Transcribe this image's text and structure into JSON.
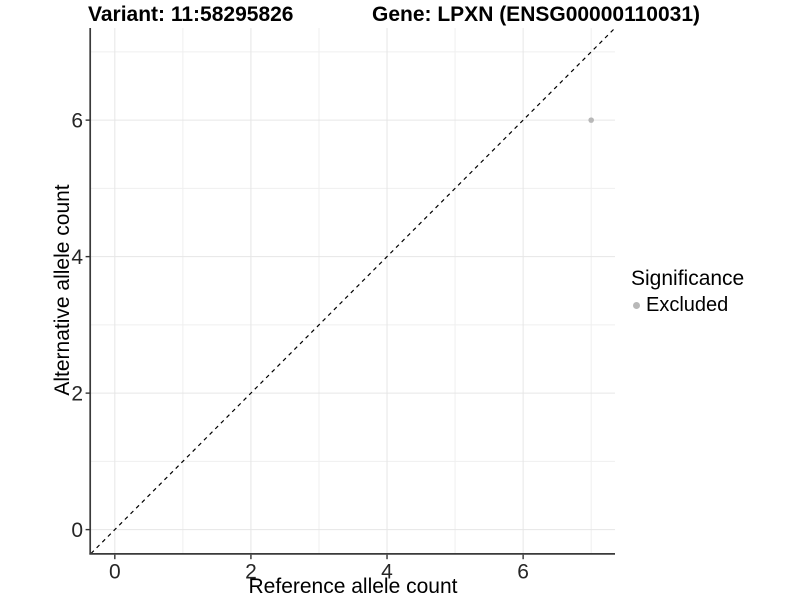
{
  "titles": {
    "left": "Variant: 11:58295826",
    "right": "Gene: LPXN (ENSG00000110031)"
  },
  "chart_data": {
    "type": "scatter",
    "xlabel": "Reference allele count",
    "ylabel": "Alternative allele count",
    "xlim": [
      -0.35,
      7.35
    ],
    "ylim": [
      -0.35,
      7.35
    ],
    "xticks": [
      0,
      2,
      4,
      6
    ],
    "yticks": [
      0,
      2,
      4,
      6
    ],
    "xticks_minor": [
      1,
      3,
      5,
      7
    ],
    "yticks_minor": [
      1,
      3,
      5,
      7
    ],
    "grid": "major+minor",
    "reference_line": {
      "type": "identity",
      "from": [
        -0.35,
        -0.35
      ],
      "to": [
        7.35,
        7.35
      ],
      "style": "dashed",
      "color": "#000000"
    },
    "series": [
      {
        "name": "Excluded",
        "color": "#b8b8b8",
        "marker": "circle",
        "points": [
          {
            "x": 7,
            "y": 6
          }
        ]
      }
    ],
    "legend": {
      "title": "Significance",
      "position": "right",
      "items": [
        {
          "label": "Excluded",
          "color": "#b8b8b8"
        }
      ]
    }
  },
  "style": {
    "background": "#ffffff",
    "grid_major_color": "#e6e6e6",
    "grid_minor_color": "#efefef",
    "axis_line_color": "#3a3a3a",
    "tick_mark_color": "#333333",
    "tick_label_color": "#262626",
    "title_color": "#000000",
    "point_color": "#b8b8b8"
  }
}
